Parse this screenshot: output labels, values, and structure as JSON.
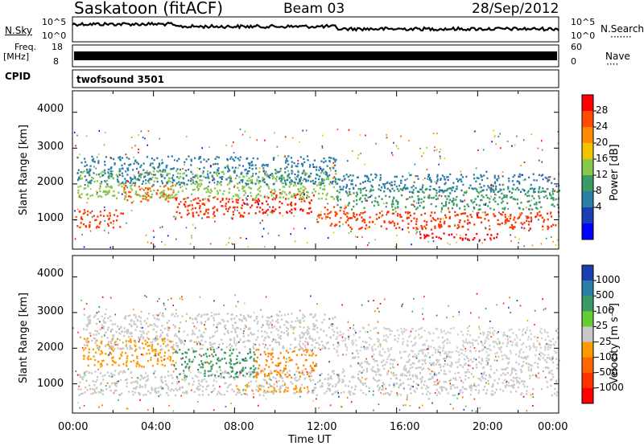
{
  "header": {
    "site": "Saskatoon (fitACF)",
    "beam": "Beam 03",
    "date": "28/Sep/2012"
  },
  "noise_panel": {
    "left_label": "N.Sky",
    "left_ticks": [
      "10^5",
      "10^0"
    ],
    "right_ticks": [
      "10^5",
      "10^0"
    ],
    "right_label": "N.Search",
    "right_dots": "·······"
  },
  "freq_panel": {
    "left_label_1": "Freq.",
    "left_label_2": "[MHz]",
    "left_ticks": [
      "18",
      "8"
    ],
    "right_ticks": [
      "60",
      "0"
    ],
    "right_label": "Nave",
    "right_dots": "····"
  },
  "cpid": {
    "label": "CPID",
    "value": "twofsound 3501"
  },
  "x_axis": {
    "ticks": [
      "00:00",
      "04:00",
      "08:00",
      "12:00",
      "16:00",
      "20:00",
      "00:00"
    ],
    "label": "Time UT"
  },
  "chart_data": [
    {
      "type": "heatmap",
      "name": "power",
      "ylabel": "Slant Range [km]",
      "yticks": [
        "4000",
        "3000",
        "2000",
        "1000"
      ],
      "ylim": [
        180,
        4600
      ],
      "xlim": [
        0,
        24
      ],
      "colorbar": {
        "label": "Power [dB]",
        "ticks": [
          "28",
          "24",
          "20",
          "16",
          "12",
          "8",
          "4"
        ],
        "colors": [
          "#ff0000",
          "#ff4c00",
          "#ff8c00",
          "#f2c400",
          "#88c84a",
          "#3c9a64",
          "#2d7ea6",
          "#1a3fb0",
          "#0000ff"
        ]
      },
      "bands": [
        {
          "t0": 0.2,
          "t1": 2.5,
          "r0": 800,
          "r1": 1300,
          "color": "#ff3a00"
        },
        {
          "t0": 2.5,
          "t1": 5.0,
          "r0": 1500,
          "r1": 2000,
          "color": "#ff5500"
        },
        {
          "t0": 5.0,
          "t1": 9.0,
          "r0": 1050,
          "r1": 1650,
          "color": "#ff2a00"
        },
        {
          "t0": 9.0,
          "t1": 12.0,
          "r0": 1200,
          "r1": 1800,
          "color": "#ff1800"
        },
        {
          "t0": 12.0,
          "t1": 13.5,
          "r0": 850,
          "r1": 1400,
          "color": "#ff4400"
        },
        {
          "t0": 13.5,
          "t1": 24.0,
          "r0": 750,
          "r1": 1250,
          "color": "#ff3300"
        },
        {
          "t0": 0.2,
          "t1": 13.0,
          "r0": 1600,
          "r1": 2400,
          "color": "#88c84a"
        },
        {
          "t0": 13.0,
          "t1": 24.0,
          "r0": 1300,
          "r1": 1900,
          "color": "#3c9a64"
        },
        {
          "t0": 0.2,
          "t1": 13.0,
          "r0": 2000,
          "r1": 2800,
          "color": "#2d7ea6"
        },
        {
          "t0": 13.0,
          "t1": 24.0,
          "r0": 1800,
          "r1": 2300,
          "color": "#2d7ea6"
        },
        {
          "t0": 17.0,
          "t1": 21.0,
          "r0": 450,
          "r1": 650,
          "color": "#ff0000"
        }
      ]
    },
    {
      "type": "heatmap",
      "name": "velocity",
      "ylabel": "Slant Range [km]",
      "yticks": [
        "4000",
        "3000",
        "2000",
        "1000"
      ],
      "ylim": [
        180,
        4600
      ],
      "xlim": [
        0,
        24
      ],
      "colorbar": {
        "label": "Velocity [m s⁻¹]",
        "ticks": [
          "1000",
          "500",
          "100",
          "25",
          "-25",
          "-100",
          "-500",
          "-1000"
        ],
        "colors": [
          "#1a3fb0",
          "#2d7ea6",
          "#3c9a64",
          "#66cc33",
          "#c8c8c8",
          "#ff9900",
          "#ff6600",
          "#ff3300",
          "#ff0000"
        ]
      },
      "bands": [
        {
          "t0": 0.2,
          "t1": 13.5,
          "r0": 700,
          "r1": 1400,
          "color": "#c8c8c8"
        },
        {
          "t0": 13.5,
          "t1": 24.0,
          "r0": 700,
          "r1": 1800,
          "color": "#c8c8c8"
        },
        {
          "t0": 0.5,
          "t1": 5.0,
          "r0": 1500,
          "r1": 2300,
          "color": "#ff9900"
        },
        {
          "t0": 5.0,
          "t1": 9.0,
          "r0": 1200,
          "r1": 2000,
          "color": "#3c9a64"
        },
        {
          "t0": 9.0,
          "t1": 12.0,
          "r0": 1200,
          "r1": 2000,
          "color": "#ff8800"
        },
        {
          "t0": 8.0,
          "t1": 12.0,
          "r0": 800,
          "r1": 1000,
          "color": "#ff9900"
        },
        {
          "t0": 0.5,
          "t1": 13.0,
          "r0": 2000,
          "r1": 3000,
          "color": "#c8c8c8"
        },
        {
          "t0": 13.0,
          "t1": 24.0,
          "r0": 1800,
          "r1": 2600,
          "color": "#d0d0d0"
        }
      ]
    }
  ]
}
